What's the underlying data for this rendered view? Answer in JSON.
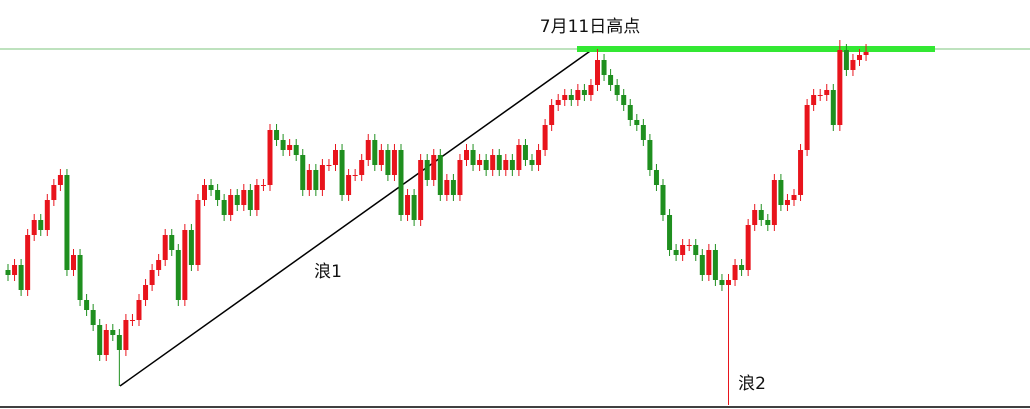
{
  "chart_data": {
    "type": "candlestick",
    "open": [
      139,
      134,
      144,
      119,
      174,
      189,
      179,
      209,
      224,
      234,
      139,
      154,
      109,
      99,
      84,
      54,
      79,
      74,
      59,
      89,
      89,
      109,
      124,
      139,
      149,
      174,
      159,
      109,
      179,
      144,
      209,
      224,
      219,
      209,
      194,
      214,
      204,
      219,
      199,
      224,
      224,
      279,
      269,
      259,
      264,
      254,
      219,
      239,
      219,
      244,
      244,
      259,
      214,
      234,
      234,
      249,
      269,
      244,
      259,
      234,
      259,
      194,
      214,
      189,
      249,
      229,
      254,
      214,
      229,
      214,
      249,
      259,
      244,
      249,
      239,
      254,
      239,
      249,
      239,
      264,
      249,
      244,
      259,
      284,
      304,
      309,
      314,
      309,
      319,
      314,
      324,
      349,
      334,
      324,
      314,
      304,
      289,
      284,
      269,
      239,
      224,
      194,
      159,
      154,
      164,
      164,
      154,
      134,
      159,
      129,
      124,
      129,
      144,
      139,
      184,
      199,
      189,
      184,
      229,
      204,
      209,
      214,
      259,
      304,
      314,
      314,
      319,
      284,
      359,
      339,
      349,
      354
    ],
    "high": [
      145,
      150,
      150,
      180,
      195,
      195,
      215,
      230,
      240,
      240,
      160,
      160,
      115,
      105,
      90,
      85,
      85,
      80,
      95,
      95,
      115,
      130,
      145,
      155,
      180,
      180,
      165,
      185,
      185,
      215,
      230,
      230,
      225,
      215,
      220,
      220,
      225,
      225,
      230,
      230,
      285,
      285,
      275,
      270,
      270,
      260,
      245,
      245,
      250,
      250,
      265,
      265,
      240,
      240,
      255,
      275,
      275,
      265,
      265,
      265,
      265,
      220,
      220,
      255,
      255,
      260,
      260,
      235,
      235,
      255,
      265,
      265,
      255,
      255,
      260,
      260,
      255,
      255,
      270,
      270,
      255,
      265,
      290,
      310,
      315,
      320,
      320,
      325,
      325,
      330,
      360,
      355,
      340,
      330,
      320,
      310,
      295,
      290,
      275,
      245,
      230,
      200,
      165,
      170,
      170,
      170,
      160,
      165,
      165,
      135,
      135,
      150,
      150,
      190,
      205,
      205,
      195,
      235,
      235,
      215,
      220,
      265,
      310,
      320,
      320,
      325,
      325,
      369,
      365,
      355,
      360,
      365
    ],
    "low": [
      128,
      128,
      113,
      113,
      168,
      173,
      173,
      203,
      218,
      133,
      133,
      103,
      93,
      78,
      48,
      48,
      68,
      23,
      53,
      83,
      83,
      103,
      118,
      133,
      143,
      153,
      103,
      103,
      138,
      138,
      203,
      213,
      203,
      188,
      188,
      198,
      198,
      193,
      193,
      218,
      218,
      263,
      253,
      253,
      248,
      213,
      213,
      213,
      213,
      238,
      238,
      208,
      208,
      228,
      228,
      243,
      238,
      238,
      228,
      228,
      188,
      188,
      183,
      183,
      223,
      223,
      208,
      208,
      208,
      208,
      243,
      238,
      238,
      233,
      233,
      233,
      233,
      233,
      233,
      243,
      238,
      238,
      253,
      278,
      298,
      303,
      303,
      303,
      308,
      308,
      318,
      328,
      318,
      308,
      298,
      283,
      278,
      263,
      233,
      218,
      188,
      153,
      148,
      148,
      158,
      148,
      128,
      128,
      123,
      118,
      4,
      123,
      133,
      133,
      178,
      183,
      178,
      178,
      198,
      198,
      203,
      208,
      253,
      298,
      308,
      308,
      278,
      278,
      333,
      333,
      343,
      348
    ],
    "close": [
      134,
      144,
      119,
      174,
      189,
      179,
      209,
      224,
      234,
      139,
      154,
      109,
      99,
      84,
      54,
      79,
      74,
      59,
      89,
      89,
      109,
      124,
      139,
      149,
      174,
      159,
      109,
      179,
      144,
      209,
      224,
      219,
      209,
      194,
      214,
      204,
      219,
      199,
      224,
      224,
      279,
      269,
      259,
      264,
      254,
      219,
      239,
      219,
      244,
      244,
      259,
      214,
      234,
      234,
      249,
      269,
      244,
      259,
      234,
      259,
      194,
      214,
      189,
      249,
      229,
      254,
      214,
      229,
      214,
      249,
      259,
      244,
      249,
      239,
      254,
      239,
      249,
      239,
      264,
      249,
      244,
      259,
      284,
      304,
      309,
      314,
      309,
      319,
      314,
      324,
      349,
      334,
      324,
      314,
      304,
      289,
      284,
      269,
      239,
      224,
      194,
      159,
      154,
      164,
      164,
      154,
      134,
      159,
      129,
      124,
      129,
      144,
      139,
      184,
      199,
      189,
      184,
      229,
      204,
      209,
      214,
      259,
      304,
      314,
      314,
      319,
      284,
      359,
      339,
      349,
      354,
      357
    ],
    "up_color": "#e8141c",
    "down_color": "#1f8f1f",
    "ylim": [
      0,
      409
    ],
    "resistance": 360,
    "resistance_color": "#33e833",
    "annotations": [
      "7月11日高点",
      "浪1",
      "浪2"
    ]
  }
}
